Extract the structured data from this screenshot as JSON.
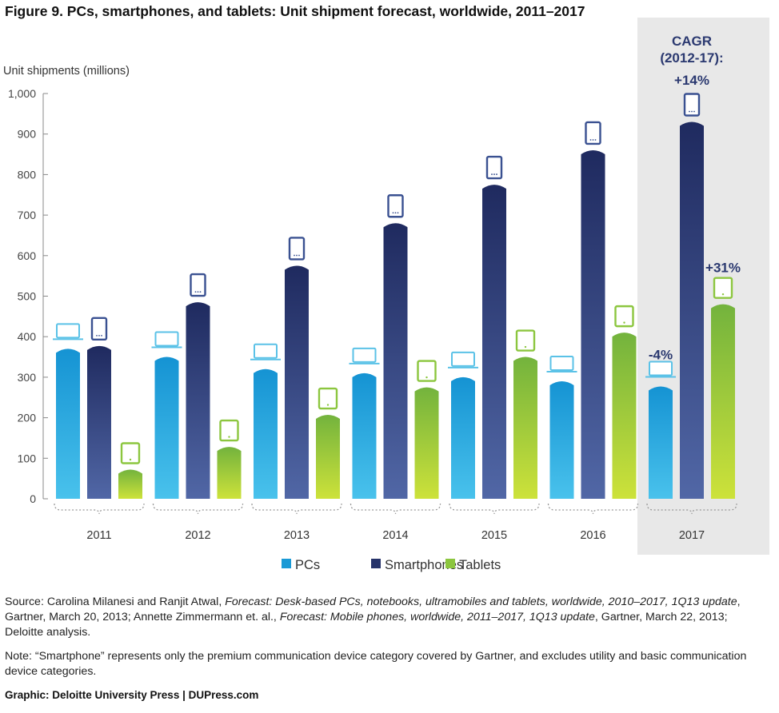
{
  "figure": {
    "title": "Figure 9. PCs, smartphones, and tablets: Unit shipment forecast, worldwide, 2011–2017",
    "source_parts": [
      {
        "text": "Source: Carolina Milanesi and Ranjit Atwal, ",
        "italic": false
      },
      {
        "text": "Forecast: Desk-based PCs, notebooks, ultramobiles and tablets, worldwide, 2010–2017, 1Q13 update",
        "italic": true
      },
      {
        "text": ", Gartner, March 20, 2013; Annette Zimmermann et. al., ",
        "italic": false
      },
      {
        "text": "Forecast: Mobile phones, worldwide, 2011–2017, 1Q13 update",
        "italic": true
      },
      {
        "text": ", Gartner, March 22, 2013; Deloitte analysis.",
        "italic": false
      }
    ],
    "note": "Note: “Smartphone” represents only the premium communication device category covered by Gartner, and excludes utility and basic communication device categories.",
    "credit": "Graphic: Deloitte University Press | DUPress.com"
  },
  "chart_data": {
    "type": "bar",
    "title": "Figure 9. PCs, smartphones, and tablets: Unit shipment forecast, worldwide, 2011–2017",
    "ylabel": "Unit shipments (millions)",
    "xlabel": "",
    "ylim": [
      0,
      1000
    ],
    "yticks": [
      "0",
      "100",
      "200",
      "300",
      "400",
      "500",
      "600",
      "700",
      "800",
      "900",
      "1,000"
    ],
    "categories": [
      "2011",
      "2012",
      "2013",
      "2014",
      "2015",
      "2016",
      "2017"
    ],
    "series": [
      {
        "name": "PCs",
        "values": [
          370,
          350,
          320,
          310,
          300,
          290,
          277
        ]
      },
      {
        "name": "Smartphones",
        "values": [
          377,
          485,
          575,
          680,
          775,
          860,
          930
        ]
      },
      {
        "name": "Tablets",
        "values": [
          72,
          128,
          207,
          275,
          350,
          410,
          480
        ]
      }
    ],
    "colors": {
      "PCs": "#1a9ad6",
      "Smartphones": "#26336a",
      "Tablets": "#8cc63f",
      "highlight_band": "#e8e8e8",
      "cagr_text": "#2b3970"
    },
    "grid": false,
    "legend_position": "bottom-center",
    "highlight": {
      "category": "2017",
      "title_lines": [
        "CAGR",
        "(2012-17):"
      ],
      "labels": {
        "PCs": "-4%",
        "Smartphones": "+14%",
        "Tablets": "+31%"
      }
    }
  }
}
